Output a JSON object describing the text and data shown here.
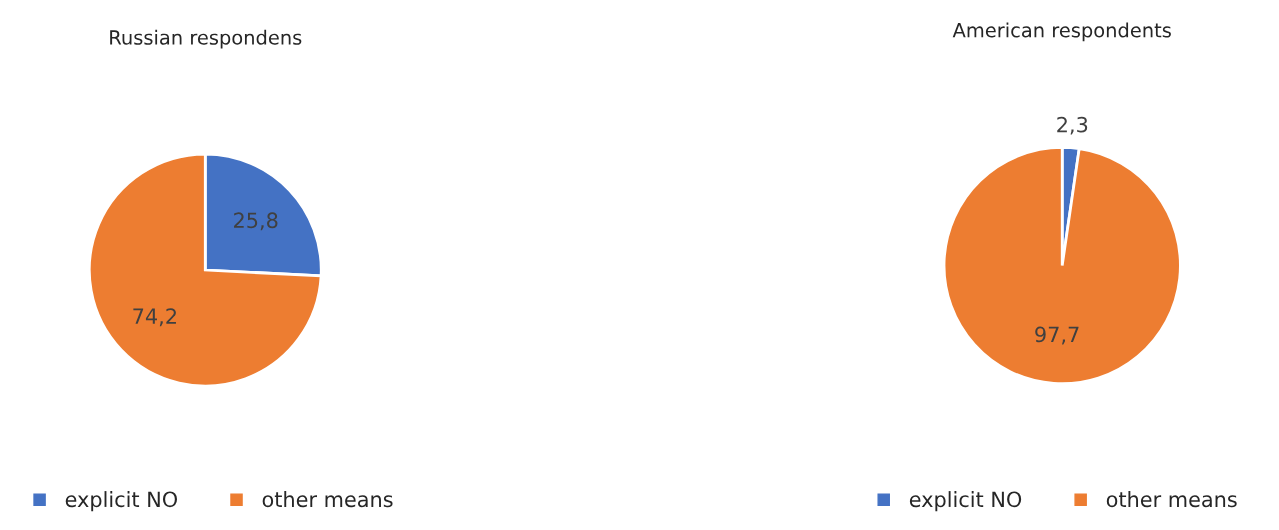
{
  "chart_data": [
    {
      "type": "pie",
      "title": "Russian respondens",
      "categories": [
        "explicit NO",
        "other means"
      ],
      "values": [
        25.8,
        74.2
      ],
      "value_labels": [
        "25,8",
        "74,2"
      ],
      "colors": [
        "#4472c4",
        "#ed7d31"
      ],
      "legend": "bottom"
    },
    {
      "type": "pie",
      "title": "American respondents",
      "categories": [
        "explicit NO",
        "other means"
      ],
      "values": [
        2.3,
        97.7
      ],
      "value_labels": [
        "2,3",
        "97,7"
      ],
      "colors": [
        "#4472c4",
        "#ed7d31"
      ],
      "legend": "bottom"
    }
  ]
}
